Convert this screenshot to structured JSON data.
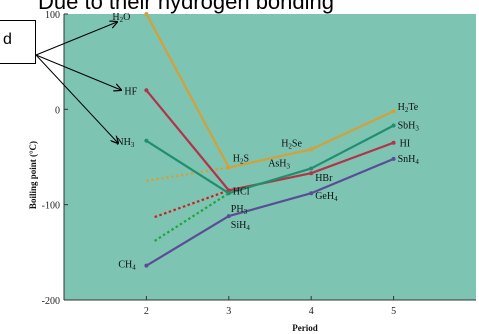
{
  "header": {
    "title_text": "Due to their hydrogen bonding"
  },
  "callout": {
    "text": "d"
  },
  "chart_data": {
    "type": "line",
    "title": "",
    "xlabel": "Period",
    "ylabel": "Boiling point (°C)",
    "x": [
      2,
      3,
      4,
      5
    ],
    "xticks": [
      "2",
      "3",
      "4",
      "5"
    ],
    "yticks": [
      "100",
      "0",
      "-100",
      "-200"
    ],
    "xlim": [
      1.0,
      6.0
    ],
    "ylim": [
      -200,
      100
    ],
    "series": [
      {
        "name": "H2O",
        "group": "16",
        "color": "#d4a039",
        "points": [
          [
            2,
            100
          ],
          [
            3,
            -61
          ],
          [
            4,
            -42
          ],
          [
            5,
            -2
          ]
        ]
      },
      {
        "name": "HF",
        "group": "17",
        "color": "#b2334a",
        "points": [
          [
            2,
            20
          ],
          [
            3,
            -85
          ],
          [
            4,
            -67
          ],
          [
            5,
            -35
          ]
        ]
      },
      {
        "name": "NH3",
        "group": "15",
        "color": "#1f8f6e",
        "points": [
          [
            2,
            -33
          ],
          [
            3,
            -88
          ],
          [
            4,
            -62
          ],
          [
            5,
            -17
          ]
        ]
      },
      {
        "name": "CH4",
        "group": "14",
        "color": "#5a4d96",
        "points": [
          [
            2,
            -164
          ],
          [
            3,
            -112
          ],
          [
            4,
            -88
          ],
          [
            5,
            -52
          ]
        ]
      }
    ],
    "extrapolations": [
      {
        "group": "16",
        "color": "#d4a039",
        "points": [
          [
            2,
            -75
          ],
          [
            3,
            -61
          ]
        ]
      },
      {
        "group": "17",
        "color": "#cc1f1f",
        "points": [
          [
            2.1,
            -113
          ],
          [
            3,
            -85
          ]
        ]
      },
      {
        "group": "15",
        "color": "#1fa53a",
        "points": [
          [
            2.1,
            -138
          ],
          [
            3,
            -88
          ]
        ]
      }
    ],
    "labels": {
      "H2O": {
        "base": "H",
        "sub": "2",
        "rest": "O"
      },
      "HF": {
        "base": "HF",
        "sub": "",
        "rest": ""
      },
      "NH3": {
        "base": "NH",
        "sub": "3",
        "rest": ""
      },
      "CH4": {
        "base": "CH",
        "sub": "4",
        "rest": ""
      },
      "H2S": {
        "base": "H",
        "sub": "2",
        "rest": "S"
      },
      "HCl": {
        "base": "HCl",
        "sub": "",
        "rest": ""
      },
      "PH3": {
        "base": "PH",
        "sub": "3",
        "rest": ""
      },
      "SiH4": {
        "base": "SiH",
        "sub": "4",
        "rest": ""
      },
      "H2Se": {
        "base": "H",
        "sub": "2",
        "rest": "Se"
      },
      "AsH3": {
        "base": "AsH",
        "sub": "3",
        "rest": ""
      },
      "HBr": {
        "base": "HBr",
        "sub": "",
        "rest": ""
      },
      "GeH4": {
        "base": "GeH",
        "sub": "4",
        "rest": ""
      },
      "H2Te": {
        "base": "H",
        "sub": "2",
        "rest": "Te"
      },
      "SbH3": {
        "base": "SbH",
        "sub": "3",
        "rest": ""
      },
      "HI": {
        "base": "HI",
        "sub": "",
        "rest": ""
      },
      "SnH4": {
        "base": "SnH",
        "sub": "4",
        "rest": ""
      }
    },
    "plot_background": "#7dc4b2",
    "grid": false
  }
}
